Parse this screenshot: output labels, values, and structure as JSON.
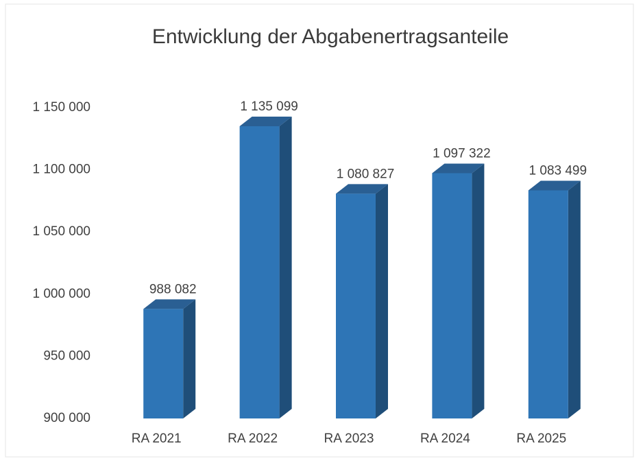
{
  "chart_data": {
    "type": "bar3d",
    "title": "Entwicklung der Abgabenertragsanteile",
    "categories": [
      "RA 2021",
      "RA 2022",
      "RA 2023",
      "RA 2024",
      "RA 2025"
    ],
    "values": [
      988082,
      1135099,
      1080827,
      1097322,
      1083499
    ],
    "value_labels": [
      "988 082",
      "1 135 099",
      "1 080 827",
      "1 097 322",
      "1 083 499"
    ],
    "color": "#2e75b6",
    "ylim": [
      900000,
      1150000
    ],
    "yticks": [
      {
        "value": 900000,
        "label": "900 000"
      },
      {
        "value": 950000,
        "label": "950 000"
      },
      {
        "value": 1000000,
        "label": "1 000 000"
      },
      {
        "value": 1050000,
        "label": "1 050 000"
      },
      {
        "value": 1100000,
        "label": "1 100 000"
      },
      {
        "value": 1150000,
        "label": "1 150 000"
      }
    ]
  }
}
